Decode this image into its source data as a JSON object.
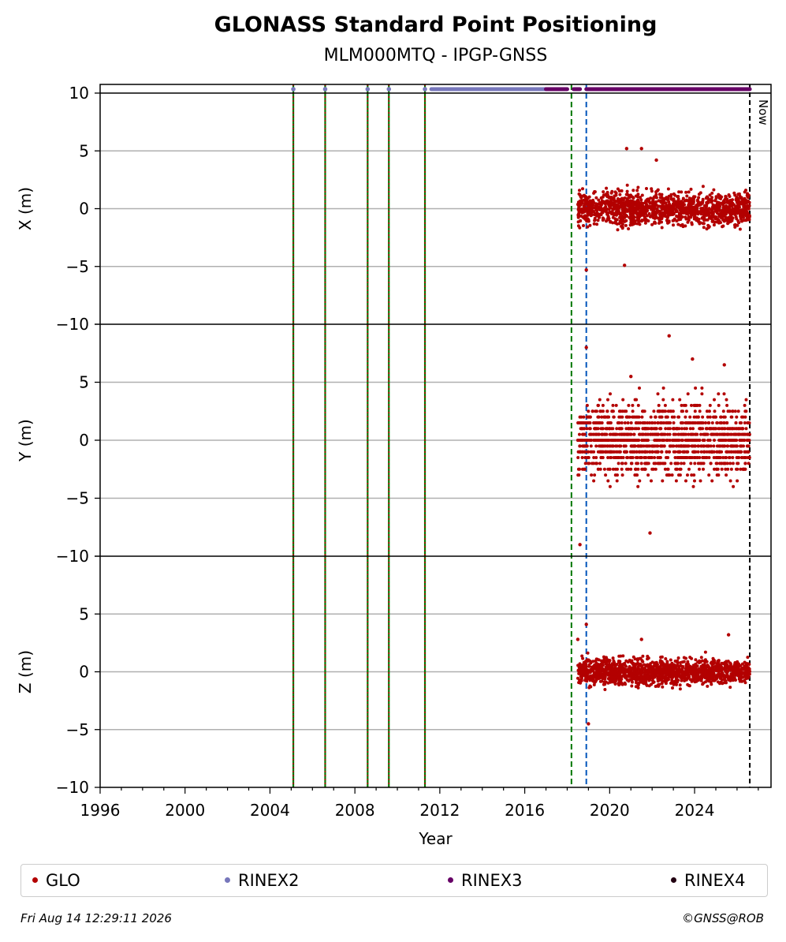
{
  "title": "GLONASS Standard Point Positioning",
  "subtitle": "MLM000MTQ - IPGP-GNSS",
  "footer": {
    "timestamp": "Fri Aug 14 12:29:11 2026",
    "copyright": "©GNSS@ROB"
  },
  "colors": {
    "glo": "#b30000",
    "rinex2": "#7777bb",
    "rinex3": "#660066",
    "rinex4": "#220011",
    "green_event": "#007700",
    "blue_event": "#0055bb",
    "now_line": "#000000",
    "grid": "#b0b0b0"
  },
  "chart_data": {
    "type": "scatter",
    "xlabel": "Year",
    "xlim": [
      1996,
      2027.6
    ],
    "x_ticks": [
      "1996",
      "2000",
      "2004",
      "2008",
      "2012",
      "2016",
      "2020",
      "2024"
    ],
    "x_tick_values": [
      1996,
      2000,
      2004,
      2008,
      2012,
      2016,
      2020,
      2024
    ],
    "panels": [
      {
        "ylabel": "X (m)",
        "ylim": [
          -10,
          10
        ],
        "y_ticks": [
          "10",
          "5",
          "0",
          "−5",
          "−10"
        ],
        "y_tick_values": [
          10,
          5,
          0,
          -5,
          -10
        ],
        "series_stats": {
          "start": 2018.5,
          "end": 2026.6,
          "spread": 1.0,
          "step": 0.0,
          "outliers": [
            [
              2018.9,
              -5.3
            ],
            [
              2020.8,
              5.2
            ],
            [
              2021.5,
              5.2
            ],
            [
              2020.7,
              -4.9
            ],
            [
              2022.2,
              4.2
            ]
          ]
        }
      },
      {
        "ylabel": "Y (m)",
        "ylim": [
          -10,
          10
        ],
        "y_ticks": [
          "",
          "5",
          "0",
          "−5",
          "−10"
        ],
        "y_tick_values": [
          10,
          5,
          0,
          -5,
          -10
        ],
        "series_stats": {
          "start": 2018.5,
          "end": 2026.6,
          "spread": 2.2,
          "step": 0.5,
          "outliers": [
            [
              2018.6,
              -9.0
            ],
            [
              2018.9,
              8.0
            ],
            [
              2022.8,
              9.0
            ],
            [
              2023.9,
              7.0
            ],
            [
              2021.0,
              5.5
            ],
            [
              2025.4,
              6.5
            ],
            [
              2021.9,
              -8.0
            ]
          ]
        }
      },
      {
        "ylabel": "Z (m)",
        "ylim": [
          -10,
          10
        ],
        "y_ticks": [
          "",
          "5",
          "0",
          "−5",
          "−10"
        ],
        "y_tick_values": [
          10,
          5,
          0,
          -5,
          -10
        ],
        "series_stats": {
          "start": 2018.5,
          "end": 2026.6,
          "spread": 0.8,
          "step": 0.0,
          "outliers": [
            [
              2018.5,
              2.8
            ],
            [
              2018.9,
              4.1
            ],
            [
              2019.0,
              -4.5
            ],
            [
              2025.6,
              3.2
            ],
            [
              2021.5,
              2.8
            ]
          ]
        }
      }
    ],
    "event_lines": {
      "green_red_dotted": [
        2005.1,
        2006.6,
        2008.6,
        2009.6,
        2011.3
      ],
      "green_dashed": [
        2018.2
      ],
      "blue_dashed": [
        2018.9
      ],
      "now": 2026.6
    },
    "now_label": "Now",
    "rinex_markers": {
      "rinex2_points": [
        2005.1,
        2006.6,
        2008.6,
        2009.6,
        2011.3
      ],
      "rinex2_span": [
        2011.6,
        2017.0
      ],
      "rinex3_spans": [
        [
          2017.0,
          2018.0
        ],
        [
          2018.3,
          2018.6
        ],
        [
          2018.9,
          2026.6
        ]
      ]
    },
    "legend": [
      "GLO",
      "RINEX2",
      "RINEX3",
      "RINEX4"
    ],
    "legend_placement": "bottom"
  }
}
